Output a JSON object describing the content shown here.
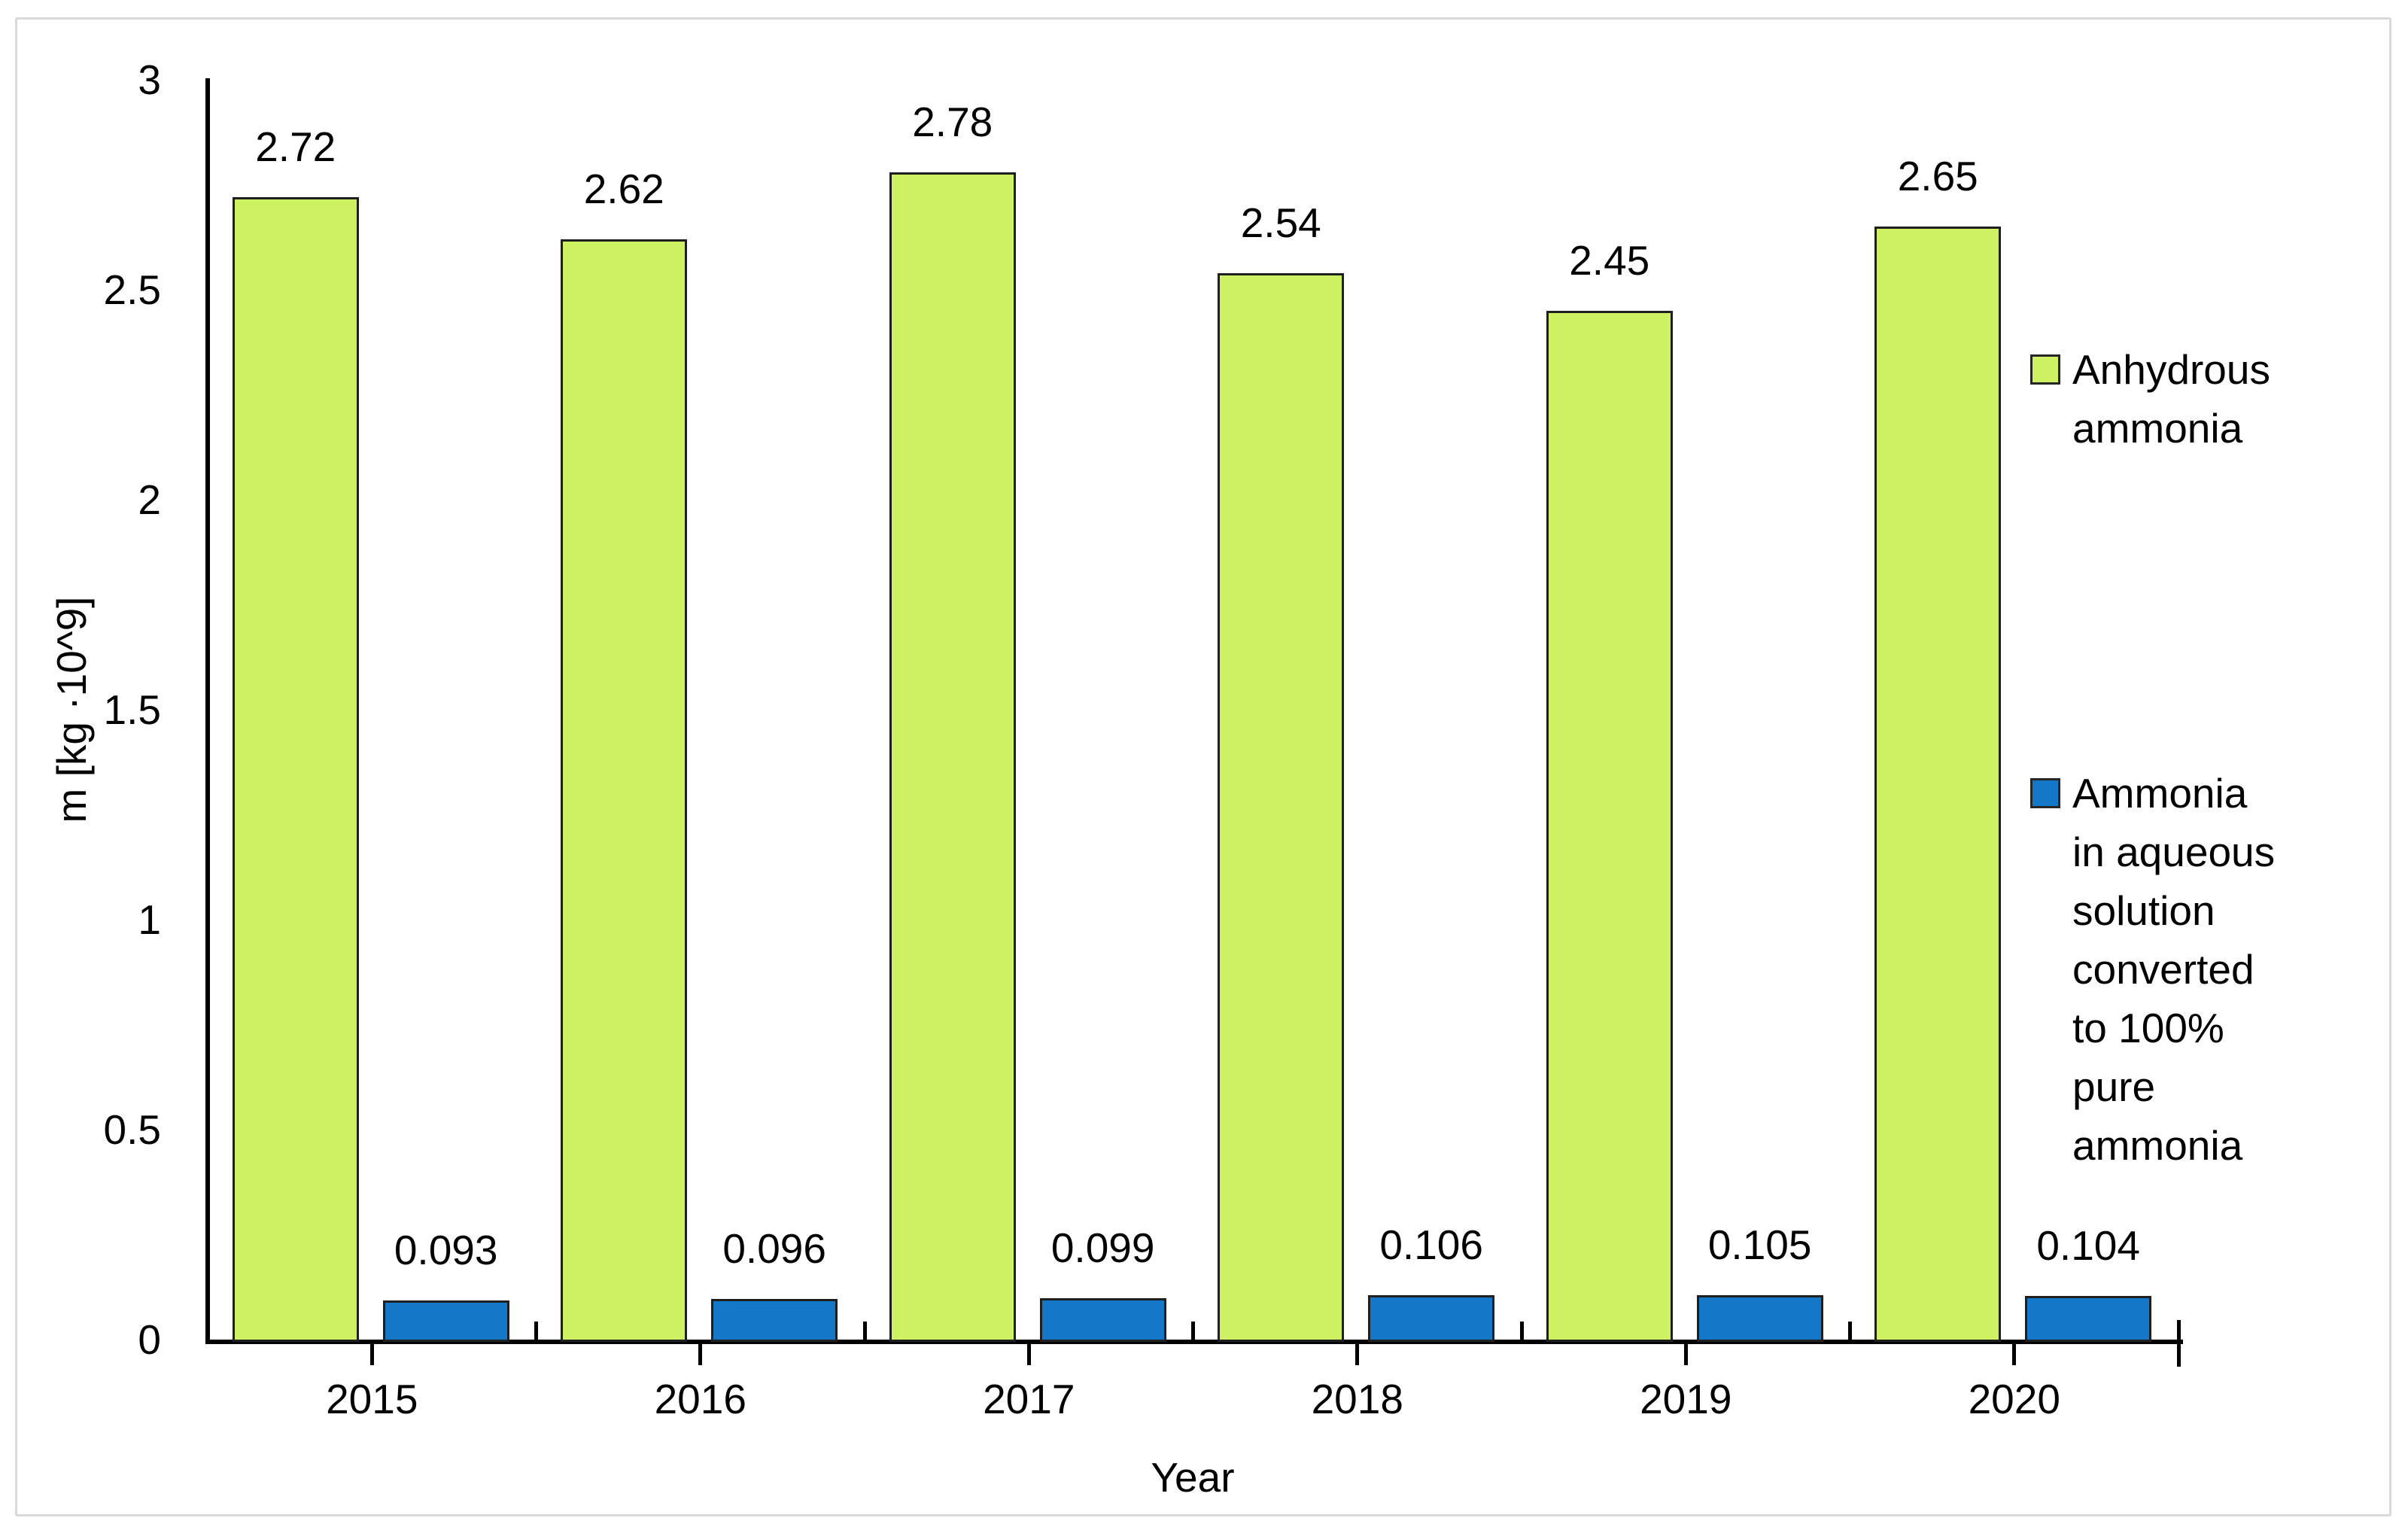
{
  "figure": {
    "background": "#ffffff",
    "frame_border_color": "#d9d9d9",
    "axis_color": "#000000",
    "text_color": "#000000"
  },
  "chart_data": {
    "type": "bar",
    "title": "",
    "xlabel": "Year",
    "ylabel": "m [kg ·10^9]",
    "ylim": [
      0,
      3
    ],
    "grid": false,
    "legend_position": "right",
    "yticks": [
      {
        "value": 3,
        "label": "3"
      },
      {
        "value": 2.5,
        "label": "2.5"
      },
      {
        "value": 2,
        "label": "2"
      },
      {
        "value": 1.5,
        "label": "1.5"
      },
      {
        "value": 1,
        "label": "1"
      },
      {
        "value": 0.5,
        "label": "0.5"
      },
      {
        "value": 0,
        "label": "0"
      }
    ],
    "categories": [
      "2015",
      "2016",
      "2017",
      "2018",
      "2019",
      "2020"
    ],
    "series": [
      {
        "name": "Anhydrous ammonia",
        "legend_lines": "Anhydrous\nammonia",
        "color": "#cdf163",
        "border_color": "#1f1f1f",
        "values": [
          2.72,
          2.62,
          2.78,
          2.54,
          2.45,
          2.65
        ],
        "labels": [
          "2.72",
          "2.62",
          "2.78",
          "2.54",
          "2.45",
          "2.65"
        ]
      },
      {
        "name": "Ammonia in aqueous solution converted to 100% pure ammonia",
        "legend_lines": "Ammonia\nin aqueous\nsolution\nconverted\nto 100%\npure\nammonia",
        "color": "#1477c8",
        "border_color": "#1f1f1f",
        "values": [
          0.093,
          0.096,
          0.099,
          0.106,
          0.105,
          0.104
        ],
        "labels": [
          "0.093",
          "0.096",
          "0.099",
          "0.106",
          "0.105",
          "0.104"
        ]
      }
    ]
  }
}
